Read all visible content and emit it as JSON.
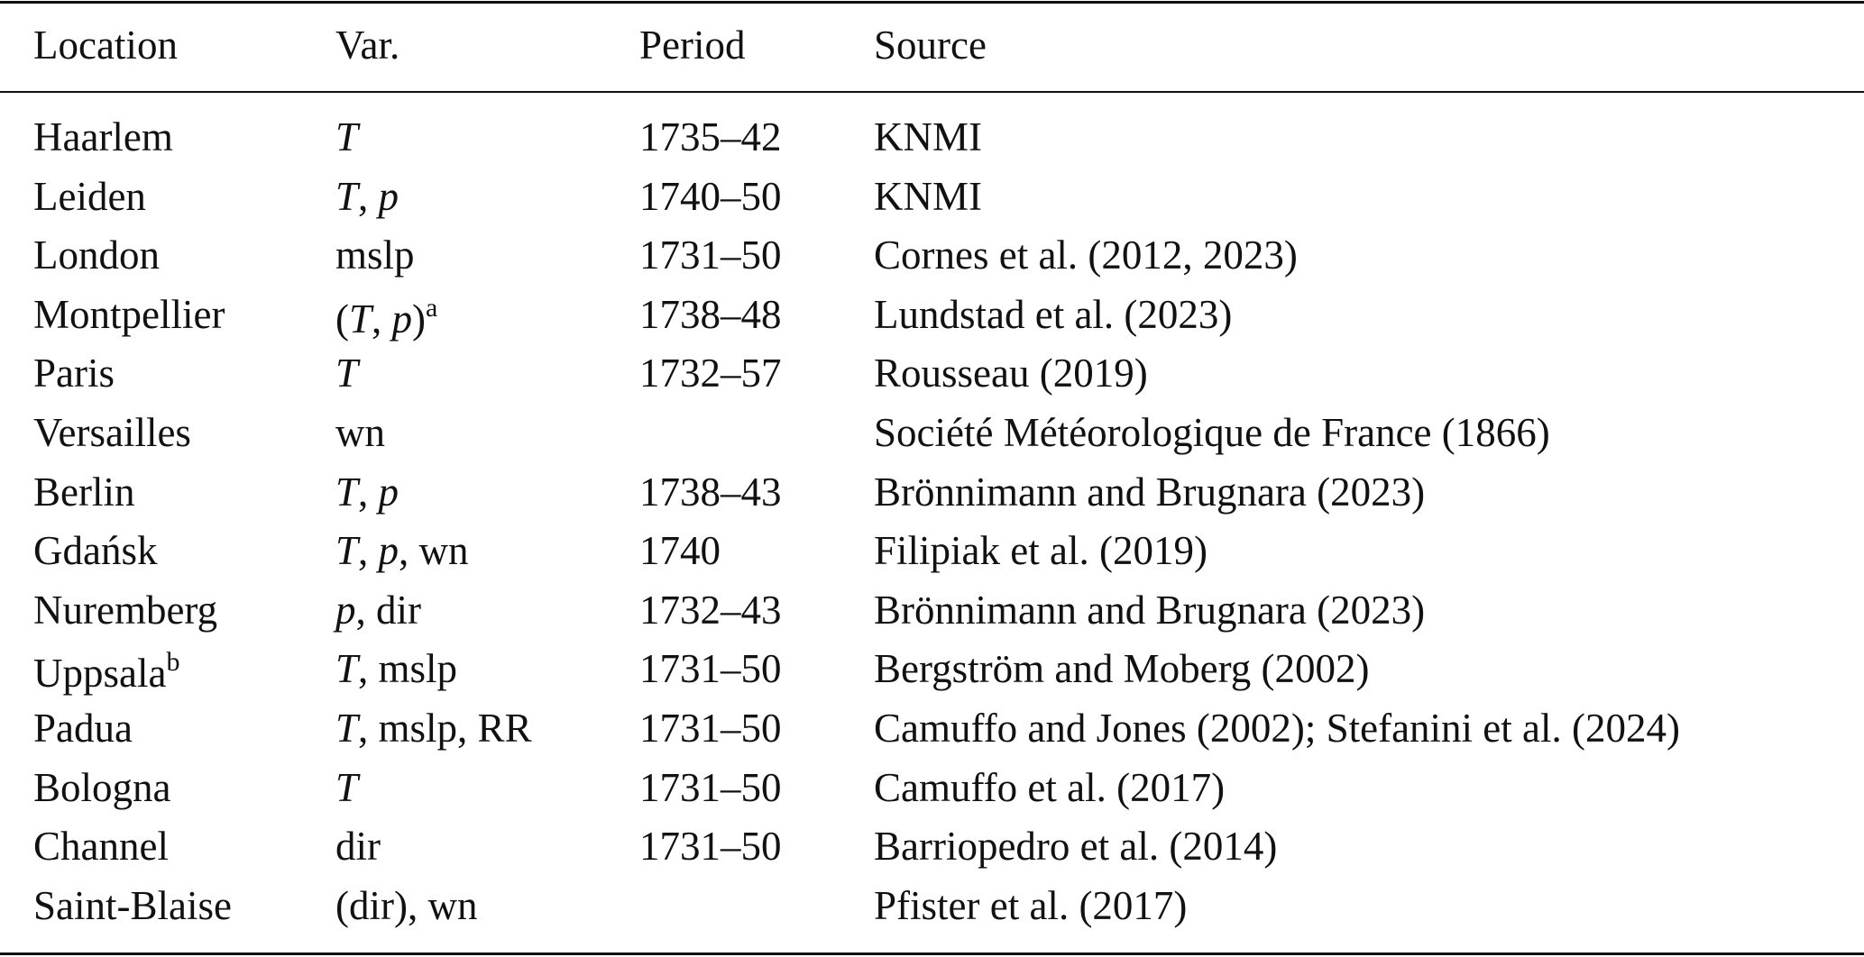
{
  "table": {
    "header": [
      "Location",
      "Var.",
      "Period",
      "Source"
    ],
    "rows": [
      {
        "location": "Haarlem",
        "var": [
          {
            "text": "T",
            "italic": true
          }
        ],
        "period": "1735–42",
        "source": "KNMI"
      },
      {
        "location": "Leiden",
        "var": [
          {
            "text": "T",
            "italic": true
          },
          {
            "text": ", "
          },
          {
            "text": "p",
            "italic": true
          }
        ],
        "period": "1740–50",
        "source": "KNMI"
      },
      {
        "location": "London",
        "var": [
          {
            "text": "mslp"
          }
        ],
        "period": "1731–50",
        "source": "Cornes et al. (2012, 2023)"
      },
      {
        "location": "Montpellier",
        "var": [
          {
            "text": "("
          },
          {
            "text": "T",
            "italic": true
          },
          {
            "text": ", "
          },
          {
            "text": "p",
            "italic": true
          },
          {
            "text": ")"
          },
          {
            "text": "a",
            "sup": true
          }
        ],
        "period": "1738–48",
        "source": "Lundstad et al. (2023)"
      },
      {
        "location": "Paris",
        "var": [
          {
            "text": "T",
            "italic": true
          }
        ],
        "period": "1732–57",
        "source": "Rousseau (2019)"
      },
      {
        "location": "Versailles",
        "var": [
          {
            "text": "wn"
          }
        ],
        "period": null,
        "source": "Société Météorologique de France (1866)"
      },
      {
        "location": "Berlin",
        "var": [
          {
            "text": "T",
            "italic": true
          },
          {
            "text": ", "
          },
          {
            "text": "p",
            "italic": true
          }
        ],
        "period": "1738–43",
        "source": "Brönnimann and Brugnara (2023)"
      },
      {
        "location": "Gdańsk",
        "var": [
          {
            "text": "T",
            "italic": true
          },
          {
            "text": ", "
          },
          {
            "text": "p",
            "italic": true
          },
          {
            "text": ", wn"
          }
        ],
        "period": "1740",
        "source": "Filipiak et al. (2019)"
      },
      {
        "location": "Nuremberg",
        "var": [
          {
            "text": "p",
            "italic": true
          },
          {
            "text": ", dir"
          }
        ],
        "period": "1732–43",
        "source": "Brönnimann and Brugnara (2023)"
      },
      {
        "location": "Uppsala",
        "location_note": "b",
        "var": [
          {
            "text": "T",
            "italic": true
          },
          {
            "text": ", mslp"
          }
        ],
        "period": "1731–50",
        "source": "Bergström and Moberg (2002)"
      },
      {
        "location": "Padua",
        "var": [
          {
            "text": "T",
            "italic": true
          },
          {
            "text": ", mslp, RR"
          }
        ],
        "period": "1731–50",
        "source": "Camuffo and Jones (2002); Stefanini et al. (2024)"
      },
      {
        "location": "Bologna",
        "var": [
          {
            "text": "T",
            "italic": true
          }
        ],
        "period": "1731–50",
        "source": "Camuffo et al. (2017)"
      },
      {
        "location": "Channel",
        "var": [
          {
            "text": "dir"
          }
        ],
        "period": "1731–50",
        "source": "Barriopedro et al. (2014)"
      },
      {
        "location": "Saint-Blaise",
        "var": [
          {
            "text": "(dir), wn"
          }
        ],
        "period": null,
        "source": "Pfister et al. (2017)"
      }
    ]
  }
}
